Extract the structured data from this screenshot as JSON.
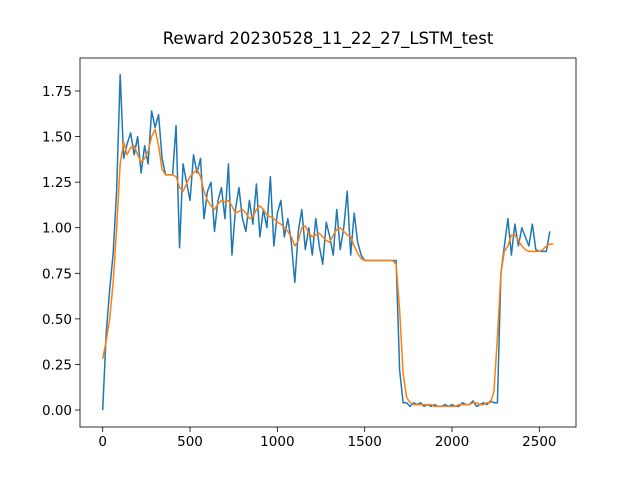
{
  "chart_data": {
    "type": "line",
    "title": "Reward 20230528_11_22_27_LSTM_test",
    "x": [
      0,
      20,
      40,
      60,
      80,
      100,
      120,
      140,
      160,
      180,
      200,
      220,
      240,
      260,
      280,
      300,
      320,
      340,
      360,
      380,
      400,
      420,
      440,
      460,
      480,
      500,
      520,
      540,
      560,
      580,
      600,
      620,
      640,
      660,
      680,
      700,
      720,
      740,
      760,
      780,
      800,
      820,
      840,
      860,
      880,
      900,
      920,
      940,
      960,
      980,
      1000,
      1020,
      1040,
      1060,
      1080,
      1100,
      1120,
      1140,
      1160,
      1180,
      1200,
      1220,
      1240,
      1260,
      1280,
      1300,
      1320,
      1340,
      1360,
      1380,
      1400,
      1420,
      1440,
      1460,
      1480,
      1500,
      1520,
      1540,
      1560,
      1580,
      1600,
      1620,
      1640,
      1660,
      1680,
      1700,
      1720,
      1740,
      1760,
      1780,
      1800,
      1820,
      1840,
      1860,
      1880,
      1900,
      1920,
      1940,
      1960,
      1980,
      2000,
      2020,
      2040,
      2060,
      2080,
      2100,
      2120,
      2140,
      2160,
      2180,
      2200,
      2220,
      2240,
      2260,
      2280,
      2300,
      2320,
      2340,
      2360,
      2380,
      2400,
      2420,
      2440,
      2460,
      2480,
      2500,
      2520,
      2540,
      2560,
      2580
    ],
    "series": [
      {
        "color": "#1f77b4",
        "values": [
          0.0,
          0.42,
          0.66,
          0.86,
          1.21,
          1.84,
          1.38,
          1.46,
          1.52,
          1.4,
          1.5,
          1.3,
          1.45,
          1.35,
          1.64,
          1.55,
          1.62,
          1.38,
          1.29,
          1.29,
          1.29,
          1.56,
          0.89,
          1.35,
          1.25,
          1.15,
          1.4,
          1.3,
          1.38,
          1.05,
          1.2,
          1.25,
          0.98,
          1.15,
          1.22,
          1.05,
          1.35,
          0.85,
          1.1,
          1.22,
          1.05,
          0.98,
          1.15,
          1.02,
          1.24,
          0.95,
          1.1,
          1.0,
          1.28,
          0.9,
          1.08,
          1.15,
          0.95,
          1.05,
          0.92,
          0.7,
          0.98,
          1.1,
          0.88,
          1.0,
          0.85,
          1.05,
          0.9,
          0.8,
          1.03,
          0.95,
          0.85,
          1.1,
          0.88,
          1.0,
          1.2,
          0.85,
          1.08,
          0.92,
          0.85,
          0.82,
          0.82,
          0.82,
          0.82,
          0.82,
          0.82,
          0.82,
          0.82,
          0.82,
          0.82,
          0.22,
          0.04,
          0.04,
          0.02,
          0.04,
          0.03,
          0.04,
          0.02,
          0.03,
          0.02,
          0.03,
          0.02,
          0.02,
          0.03,
          0.02,
          0.03,
          0.02,
          0.02,
          0.04,
          0.03,
          0.03,
          0.05,
          0.02,
          0.03,
          0.04,
          0.03,
          0.05,
          0.04,
          0.04,
          0.75,
          0.9,
          1.05,
          0.85,
          1.02,
          0.9,
          1.0,
          0.95,
          0.9,
          1.02,
          0.88,
          0.87,
          0.87,
          0.87,
          0.98,
          null
        ]
      },
      {
        "color": "#ff7f0e",
        "values": [
          0.28,
          0.38,
          0.5,
          0.7,
          1.0,
          1.35,
          1.47,
          1.4,
          1.44,
          1.45,
          1.4,
          1.36,
          1.38,
          1.42,
          1.5,
          1.54,
          1.45,
          1.32,
          1.29,
          1.29,
          1.29,
          1.28,
          1.22,
          1.2,
          1.24,
          1.28,
          1.3,
          1.32,
          1.28,
          1.2,
          1.15,
          1.12,
          1.1,
          1.13,
          1.15,
          1.14,
          1.15,
          1.12,
          1.08,
          1.09,
          1.1,
          1.08,
          1.05,
          1.06,
          1.1,
          1.12,
          1.1,
          1.07,
          1.06,
          1.05,
          1.03,
          1.02,
          1.0,
          0.98,
          0.95,
          0.9,
          0.93,
          1.0,
          1.01,
          0.97,
          0.95,
          0.96,
          0.97,
          0.95,
          0.93,
          0.92,
          0.96,
          0.99,
          1.0,
          0.98,
          0.96,
          0.95,
          0.9,
          0.86,
          0.83,
          0.82,
          0.82,
          0.82,
          0.82,
          0.82,
          0.82,
          0.82,
          0.82,
          0.82,
          0.8,
          0.55,
          0.2,
          0.07,
          0.04,
          0.03,
          0.03,
          0.03,
          0.03,
          0.03,
          0.03,
          0.02,
          0.02,
          0.02,
          0.02,
          0.02,
          0.02,
          0.02,
          0.03,
          0.03,
          0.03,
          0.03,
          0.04,
          0.04,
          0.03,
          0.03,
          0.04,
          0.04,
          0.1,
          0.4,
          0.75,
          0.87,
          0.9,
          0.96,
          0.96,
          0.93,
          0.9,
          0.88,
          0.87,
          0.87,
          0.87,
          0.87,
          0.88,
          0.9,
          0.91,
          0.91
        ]
      }
    ],
    "xlim": [
      -130,
      2710
    ],
    "ylim": [
      -0.093,
      1.931
    ],
    "xticks": [
      0,
      500,
      1000,
      1500,
      2000,
      2500
    ],
    "yticks": [
      {
        "value": 0,
        "label": "0.00"
      },
      {
        "value": 0.25,
        "label": "0.25"
      },
      {
        "value": 0.5,
        "label": "0.50"
      },
      {
        "value": 0.75,
        "label": "0.75"
      },
      {
        "value": 1,
        "label": "1.00"
      },
      {
        "value": 1.25,
        "label": "1.25"
      },
      {
        "value": 1.5,
        "label": "1.50"
      },
      {
        "value": 1.75,
        "label": "1.75"
      }
    ]
  }
}
